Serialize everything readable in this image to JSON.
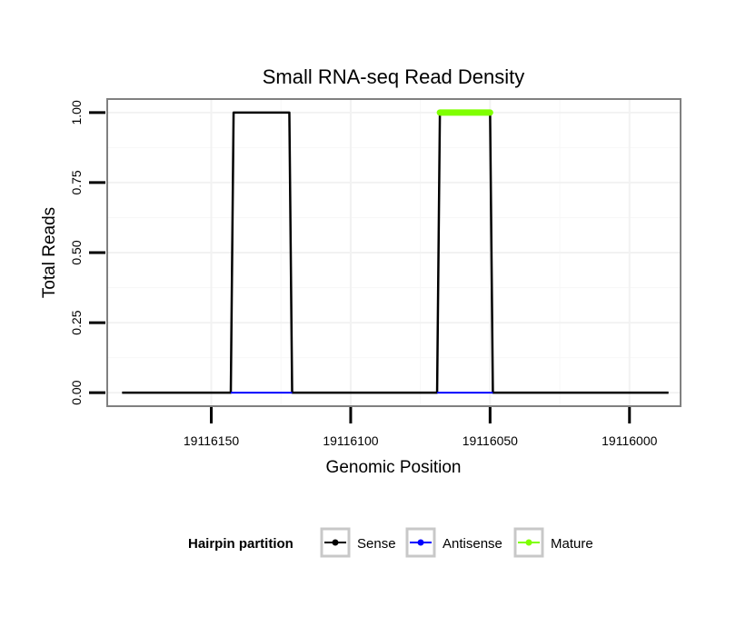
{
  "chart_data": {
    "type": "line",
    "title": "Small RNA-seq Read Density",
    "xlabel": "Genomic Position",
    "ylabel": "Total Reads",
    "x_reversed": true,
    "xlim": [
      19116187,
      19115982
    ],
    "ylim": [
      -0.045,
      1.045
    ],
    "x_ticks": [
      19116150,
      19116100,
      19116050,
      19116000
    ],
    "x_tick_labels": [
      "19116150",
      "19116100",
      "19116050",
      "19116000"
    ],
    "y_ticks": [
      0,
      0.25,
      0.5,
      0.75,
      1.0
    ],
    "y_tick_labels": [
      "0.00",
      "0.25",
      "0.50",
      "0.75",
      "1.00"
    ],
    "grid": true,
    "legend": {
      "title": "Hairpin partition",
      "position": "bottom",
      "entries": [
        "Sense",
        "Antisense",
        "Mature"
      ]
    },
    "series": [
      {
        "name": "Sense",
        "color": "#000000",
        "style": "line",
        "x": [
          19116182,
          19116143,
          19116142,
          19116122,
          19116121,
          19116069,
          19116068,
          19116050,
          19116049,
          19115986
        ],
        "y": [
          0,
          0,
          1,
          1,
          0,
          0,
          1,
          1,
          0,
          0
        ]
      },
      {
        "name": "Antisense",
        "color": "#0000ff",
        "style": "line",
        "x": [
          19116143,
          19116121,
          19116069,
          19116049
        ],
        "y": [
          0,
          0,
          0,
          0
        ],
        "segments": [
          [
            0,
            1
          ],
          [
            2,
            3
          ]
        ]
      },
      {
        "name": "Mature",
        "color": "#7fff00",
        "style": "thick-segment",
        "x": [
          19116068,
          19116050
        ],
        "y": [
          1,
          1
        ]
      }
    ]
  }
}
